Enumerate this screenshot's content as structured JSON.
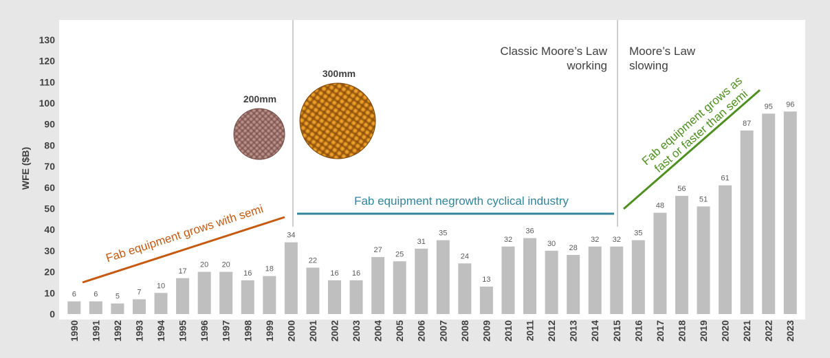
{
  "chart_data": {
    "type": "bar",
    "ylabel": "WFE ($B)",
    "ylim": [
      0,
      130
    ],
    "yticks": [
      0,
      10,
      20,
      30,
      40,
      50,
      60,
      70,
      80,
      90,
      100,
      110,
      120,
      130
    ],
    "categories": [
      "1990",
      "1991",
      "1992",
      "1993",
      "1994",
      "1995",
      "1996",
      "1997",
      "1998",
      "1999",
      "2000",
      "2001",
      "2002",
      "2003",
      "2004",
      "2005",
      "2006",
      "2007",
      "2008",
      "2009",
      "2010",
      "2011",
      "2012",
      "2013",
      "2014",
      "2015",
      "2016",
      "2017",
      "2018",
      "2019",
      "2020",
      "2021",
      "2022",
      "2023"
    ],
    "values": [
      6,
      6,
      5,
      7,
      10,
      17,
      20,
      20,
      16,
      18,
      34,
      22,
      16,
      16,
      27,
      25,
      31,
      35,
      24,
      13,
      32,
      36,
      30,
      28,
      32,
      32,
      35,
      48,
      56,
      51,
      61,
      87,
      95,
      96
    ],
    "bar_color": "#bfbfbf",
    "grid": false,
    "annotations": {
      "era1_text": "Fab equipment grows with semi",
      "era1_color": "#c55a11",
      "era2_text": "Fab equipment negrowth cyclical industry",
      "era2_color": "#31849b",
      "era3_text_line1": "Fab equipment grows as",
      "era3_text_line2": "fast or faster than semi",
      "era3_color": "#4e8f1f",
      "classic_line1": "Classic Moore’s Law",
      "classic_line2": "working",
      "slowing_line1": "Moore’s Law",
      "slowing_line2": "slowing",
      "wafer_200": "200mm",
      "wafer_300": "300mm"
    }
  }
}
